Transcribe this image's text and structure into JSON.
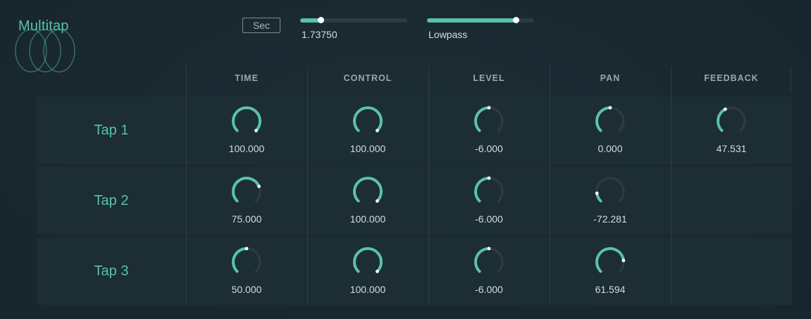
{
  "app": {
    "title": "Multitap",
    "accent_color": "#59c2a8",
    "track_color": "#2c3a42"
  },
  "header": {
    "unit_button_label": "Sec",
    "time_slider": {
      "value_text": "1.73750",
      "level": 0.19
    },
    "filter_slider": {
      "value_text": "Lowpass",
      "level": 0.83
    }
  },
  "columns": [
    "TIME",
    "CONTROL",
    "LEVEL",
    "PAN",
    "FEEDBACK"
  ],
  "taps": [
    {
      "label": "Tap 1",
      "time": {
        "value": "100.000",
        "level": 1.0
      },
      "control": {
        "value": "100.000",
        "level": 1.0
      },
      "level": {
        "value": "-6.000",
        "level": 0.5
      },
      "pan": {
        "value": "0.000",
        "level": 0.5
      },
      "feedback": {
        "value": "47.531",
        "level": 0.4
      }
    },
    {
      "label": "Tap 2",
      "time": {
        "value": "75.000",
        "level": 0.75
      },
      "control": {
        "value": "100.000",
        "level": 1.0
      },
      "level": {
        "value": "-6.000",
        "level": 0.5
      },
      "pan": {
        "value": "-72.281",
        "level": 0.14
      }
    },
    {
      "label": "Tap 3",
      "time": {
        "value": "50.000",
        "level": 0.5
      },
      "control": {
        "value": "100.000",
        "level": 1.0
      },
      "level": {
        "value": "-6.000",
        "level": 0.5
      },
      "pan": {
        "value": "61.594",
        "level": 0.81
      }
    }
  ]
}
